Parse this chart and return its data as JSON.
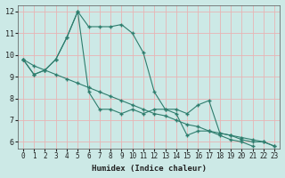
{
  "xlabel": "Humidex (Indice chaleur)",
  "line1_x": [
    0,
    1,
    2,
    3,
    4,
    5,
    6,
    7,
    8,
    9,
    10,
    11,
    12,
    13,
    14,
    15,
    16,
    17,
    18,
    19,
    20,
    21
  ],
  "line1_y": [
    9.8,
    9.1,
    9.3,
    9.8,
    10.8,
    12.0,
    8.3,
    7.5,
    7.5,
    7.3,
    7.5,
    7.3,
    7.5,
    7.5,
    7.3,
    6.3,
    6.5,
    6.5,
    6.3,
    6.1,
    6.0,
    5.8
  ],
  "line2_x": [
    0,
    1,
    2,
    3,
    4,
    5,
    6,
    7,
    8,
    9,
    10,
    11,
    12,
    13,
    14,
    15,
    16,
    17,
    18,
    19,
    20,
    21,
    22,
    23
  ],
  "line2_y": [
    9.8,
    9.1,
    9.3,
    9.8,
    10.8,
    12.0,
    11.3,
    11.3,
    11.3,
    11.4,
    11.0,
    10.1,
    8.3,
    7.5,
    7.5,
    7.3,
    7.7,
    7.9,
    6.4,
    6.3,
    6.1,
    6.0,
    6.0,
    5.8
  ],
  "line3_x": [
    0,
    1,
    2,
    3,
    4,
    5,
    6,
    7,
    8,
    9,
    10,
    11,
    12,
    13,
    14,
    15,
    16,
    17,
    18,
    19,
    20,
    21,
    22,
    23
  ],
  "line3_y": [
    9.8,
    9.5,
    9.3,
    9.1,
    8.9,
    8.7,
    8.5,
    8.3,
    8.1,
    7.9,
    7.7,
    7.5,
    7.3,
    7.2,
    7.0,
    6.8,
    6.7,
    6.5,
    6.4,
    6.3,
    6.2,
    6.1,
    6.0,
    5.8
  ],
  "color": "#2e7d6d",
  "bg_color": "#cce9e6",
  "grid_color": "#e8b4b4",
  "ylim": [
    6,
    12
  ],
  "xlim": [
    0,
    23
  ],
  "yticks": [
    6,
    7,
    8,
    9,
    10,
    11,
    12
  ],
  "xticks": [
    0,
    1,
    2,
    3,
    4,
    5,
    6,
    7,
    8,
    9,
    10,
    11,
    12,
    13,
    14,
    15,
    16,
    17,
    18,
    19,
    20,
    21,
    22,
    23
  ]
}
